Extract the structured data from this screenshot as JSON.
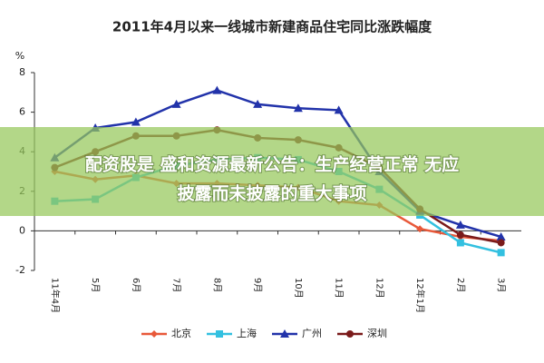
{
  "chart_data": {
    "type": "line",
    "title": "2011年4月以来一线城市新建商品住宅同比涨跌幅度",
    "y_label": "%",
    "categories": [
      "11年4月",
      "5月",
      "6月",
      "7月",
      "8月",
      "9月",
      "10月",
      "11月",
      "12月",
      "12年1月",
      "2月",
      "3月"
    ],
    "series": [
      {
        "name": "北京",
        "color": "#e8593a",
        "marker": "diamond",
        "values": [
          3.0,
          2.6,
          2.8,
          2.4,
          2.4,
          2.3,
          2.2,
          1.5,
          1.3,
          0.1,
          -0.3,
          -0.5
        ]
      },
      {
        "name": "上海",
        "color": "#33c0e0",
        "marker": "square",
        "values": [
          1.5,
          1.6,
          2.7,
          3.3,
          3.6,
          3.7,
          3.6,
          3.0,
          2.1,
          0.8,
          -0.6,
          -1.1
        ]
      },
      {
        "name": "广州",
        "color": "#2233aa",
        "marker": "triangle",
        "values": [
          3.7,
          5.2,
          5.5,
          6.4,
          7.1,
          6.4,
          6.2,
          6.1,
          3.0,
          1.0,
          0.3,
          -0.3
        ]
      },
      {
        "name": "深圳",
        "color": "#7a1a1a",
        "marker": "circle",
        "values": [
          3.2,
          4.0,
          4.8,
          4.8,
          5.1,
          4.7,
          4.6,
          4.2,
          3.2,
          1.1,
          -0.2,
          -0.6
        ]
      }
    ],
    "ylim": [
      -2,
      8
    ],
    "yticks": [
      -2,
      0,
      2,
      4,
      6,
      8
    ],
    "grid": false,
    "legend": "bottom"
  },
  "overlay": {
    "lines": [
      "配资股是 盛和资源最新公告：生产经营正常 无应",
      "披露而未披露的重大事项"
    ]
  }
}
